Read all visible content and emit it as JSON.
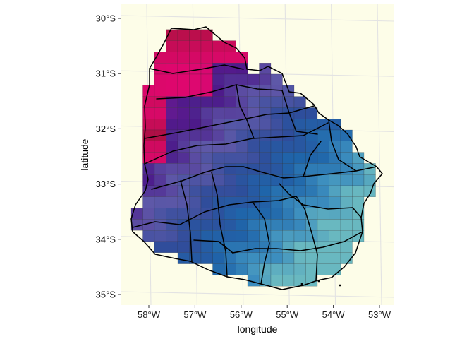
{
  "map": {
    "xlabel": "longitude",
    "ylabel": "latitude",
    "x_ticks": [
      "58°W",
      "57°W",
      "56°W",
      "55°W",
      "54°W",
      "53°W"
    ],
    "y_ticks": [
      "30°S",
      "31°S",
      "32°S",
      "33°S",
      "34°S",
      "35°S"
    ],
    "x_tick_values": [
      -58,
      -57,
      -56,
      -55,
      -54,
      -53
    ],
    "y_tick_values": [
      -30,
      -31,
      -32,
      -33,
      -34,
      -35
    ],
    "xlim": [
      -58.7,
      -52.85
    ],
    "ylim": [
      -35.22,
      -29.85
    ],
    "grid": true,
    "legend": "none",
    "colors": {
      "panel_background": "#fdfde8",
      "gridline": "#e3e3e3",
      "boundary": "#000000",
      "ramp": [
        "#5e0a1e",
        "#b80f4a",
        "#e0076f",
        "#6b1a92",
        "#4c1a8a",
        "#5e58a8",
        "#2f4d9b",
        "#1f65aa",
        "#3d8fbf",
        "#79c7c0"
      ]
    }
  }
}
